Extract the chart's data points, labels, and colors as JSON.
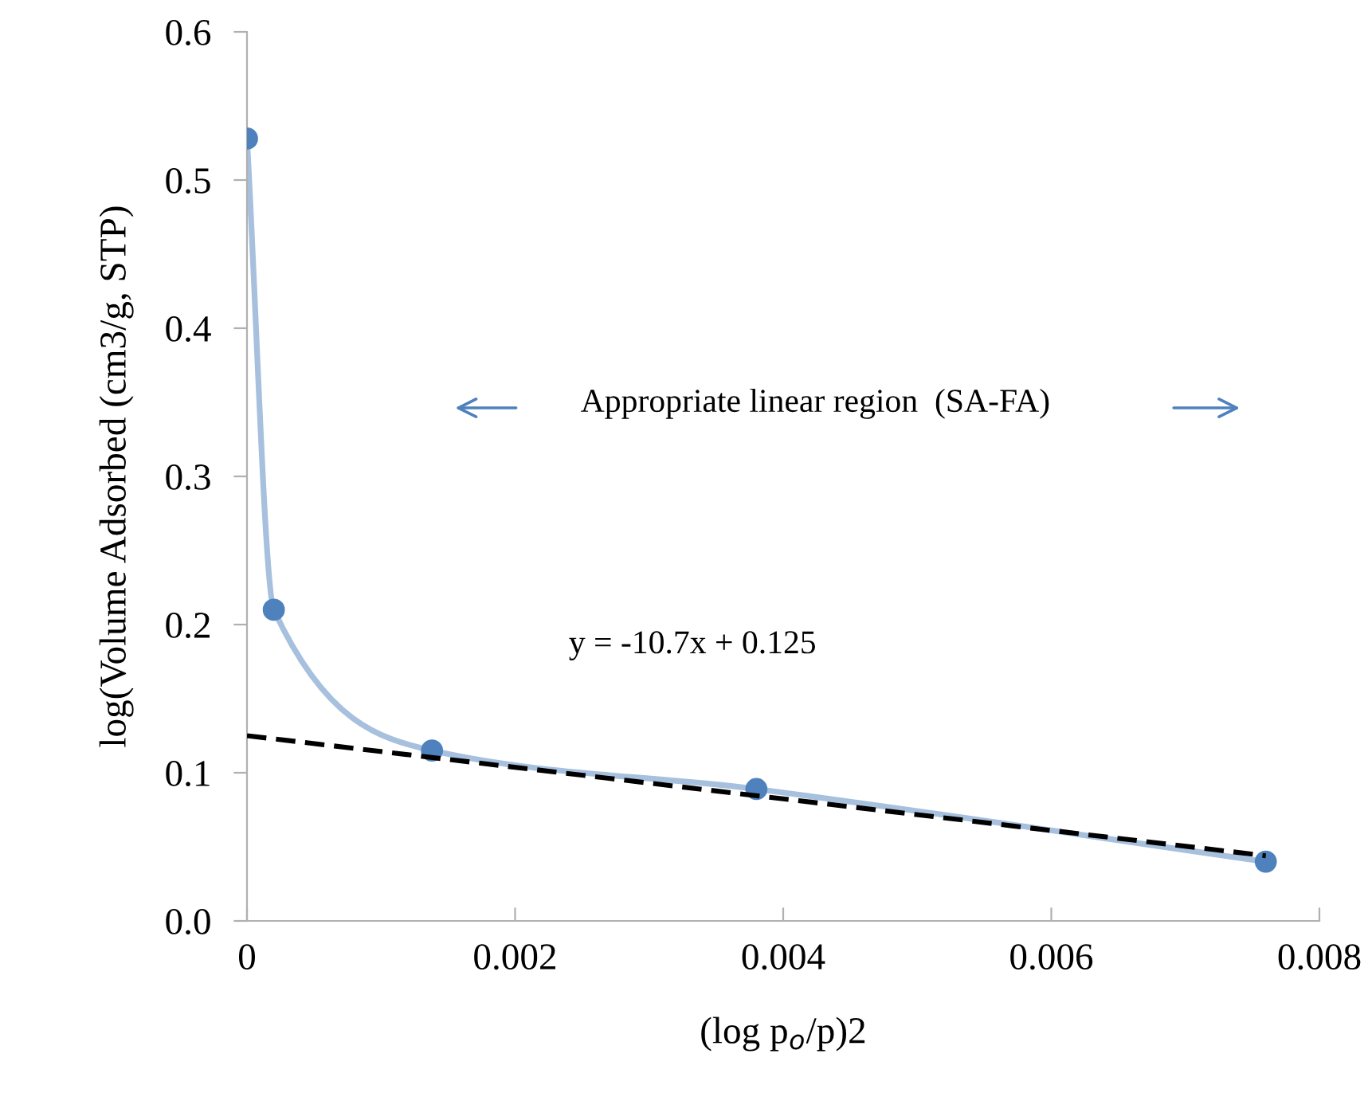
{
  "chart_data": {
    "type": "line",
    "xlabel": "(log p$_{o}$/p)2",
    "ylabel": "log(Volume Adsorbed (cm3/g, STP)",
    "series": [
      {
        "color": "#a7c0de",
        "line_style": "solid",
        "x": [
          0.0,
          0.0002,
          0.00138,
          0.0038,
          0.0076
        ],
        "values": [
          0.528,
          0.21,
          0.115,
          0.089,
          0.04
        ]
      },
      {
        "type": "scatter",
        "color": "#4f81bd",
        "marker": "circle",
        "x": [
          0.0,
          0.0002,
          0.00138,
          0.0038,
          0.0076
        ],
        "values": [
          0.528,
          0.21,
          0.115,
          0.089,
          0.04
        ]
      },
      {
        "type": "line",
        "color": "#000000",
        "line_style": "dashed",
        "marker": "none",
        "x": [
          0.0,
          0.0076
        ],
        "values": [
          0.125,
          0.044
        ]
      }
    ],
    "xlim": [
      0,
      0.008
    ],
    "xticks": [
      0,
      0.002,
      0.004,
      0.006,
      0.008
    ],
    "ylim": [
      0,
      0.6
    ],
    "yticks": [
      {
        "value": 0,
        "label": "0.0"
      },
      0.1,
      0.2,
      0.3,
      0.4,
      0.5,
      0.6
    ],
    "grid": false,
    "legend": false,
    "annotations": [
      "Appropriate linear region  (SA-FA)",
      "y = -10.7x + 0.125"
    ]
  }
}
